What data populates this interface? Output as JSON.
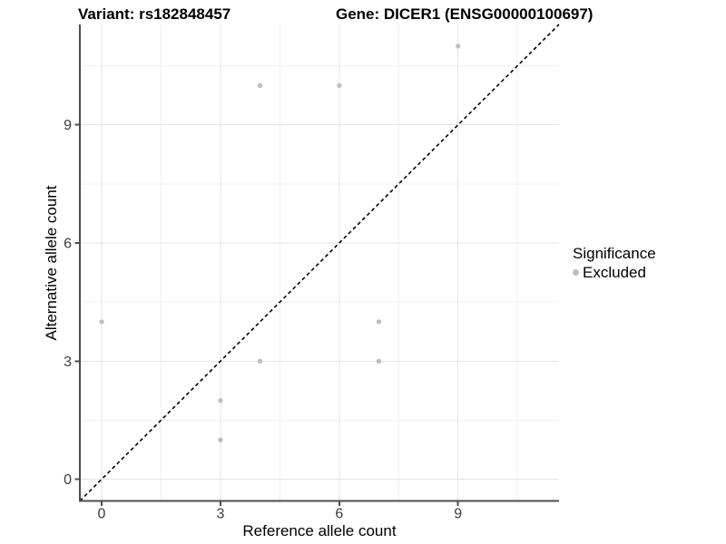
{
  "chart_data": {
    "type": "scatter",
    "title_left": "Variant: rs182848457",
    "title_right": "Gene: DICER1 (ENSG00000100697)",
    "xlabel": "Reference allele count",
    "ylabel": "Alternative allele count",
    "xlim": [
      -0.55,
      11.55
    ],
    "ylim": [
      -0.55,
      11.55
    ],
    "x_major_ticks": [
      0,
      3,
      6,
      9
    ],
    "y_major_ticks": [
      0,
      3,
      6,
      9
    ],
    "x_minor_gridlines": [
      1.5,
      4.5,
      7.5,
      10.5
    ],
    "y_minor_gridlines": [
      1.5,
      4.5,
      7.5,
      10.5
    ],
    "grid": true,
    "series": [
      {
        "name": "Excluded",
        "color": "#bebebe",
        "points": [
          [
            0,
            4
          ],
          [
            3,
            1
          ],
          [
            3,
            2
          ],
          [
            4,
            3
          ],
          [
            4,
            10
          ],
          [
            6,
            10
          ],
          [
            7,
            3
          ],
          [
            7,
            4
          ],
          [
            9,
            11
          ]
        ]
      }
    ],
    "reference_line": {
      "style": "dashed",
      "slope": 1,
      "intercept": 0,
      "color": "#000000"
    },
    "legend": {
      "position": "right",
      "title": "Significance",
      "entries": [
        {
          "label": "Excluded",
          "color": "#bebebe"
        }
      ]
    },
    "colors": {
      "point": "#bebebe",
      "grid_major": "#e3e3e3",
      "grid_minor": "#f1f1f1",
      "axis_line": "#4d4d4d",
      "tick_mark": "#4d4d4d",
      "tick_label": "#3b3b3b",
      "background": "#ffffff"
    }
  }
}
